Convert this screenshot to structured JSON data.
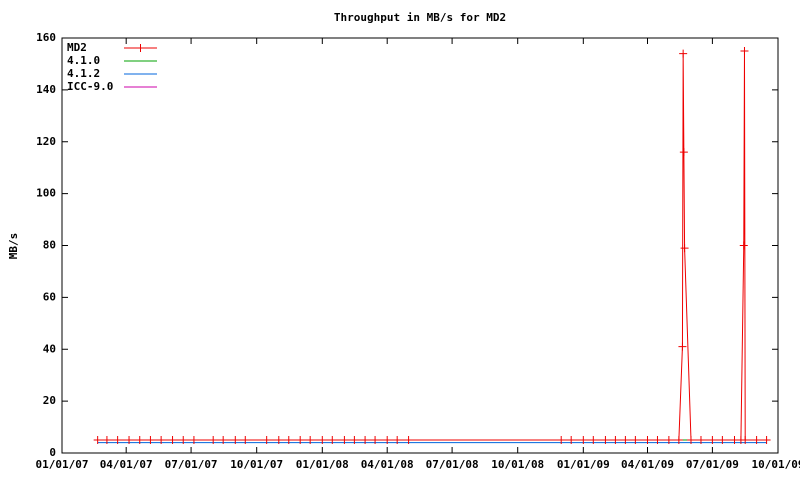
{
  "chart_data": {
    "type": "line",
    "title": "Throughput in MB/s for MD2",
    "y_label": "MB/s",
    "xlim": [
      "2007-01-01",
      "2009-10-01"
    ],
    "xticks": [
      {
        "value": "2007-01-01",
        "label": "01/01/07"
      },
      {
        "value": "2007-04-01",
        "label": "04/01/07"
      },
      {
        "value": "2007-07-01",
        "label": "07/01/07"
      },
      {
        "value": "2007-10-01",
        "label": "10/01/07"
      },
      {
        "value": "2008-01-01",
        "label": "01/01/08"
      },
      {
        "value": "2008-04-01",
        "label": "04/01/08"
      },
      {
        "value": "2008-07-01",
        "label": "07/01/08"
      },
      {
        "value": "2008-10-01",
        "label": "10/01/08"
      },
      {
        "value": "2009-01-01",
        "label": "01/01/09"
      },
      {
        "value": "2009-04-01",
        "label": "04/01/09"
      },
      {
        "value": "2009-07-01",
        "label": "07/01/09"
      },
      {
        "value": "2009-10-01",
        "label": "10/01/09"
      }
    ],
    "ylim": [
      0,
      160
    ],
    "yticks": [
      0,
      20,
      40,
      60,
      80,
      100,
      120,
      140,
      160
    ],
    "legend": "top-left",
    "series": [
      {
        "name": "MD2",
        "color": "#ee0000",
        "marker": "plus",
        "x": [
          "2007-02-20",
          "2007-03-05",
          "2007-03-20",
          "2007-04-05",
          "2007-04-20",
          "2007-05-05",
          "2007-05-20",
          "2007-06-05",
          "2007-06-20",
          "2007-07-05",
          "2007-08-01",
          "2007-08-15",
          "2007-09-01",
          "2007-09-15",
          "2007-10-15",
          "2007-11-01",
          "2007-11-15",
          "2007-12-01",
          "2007-12-15",
          "2008-01-01",
          "2008-01-15",
          "2008-02-01",
          "2008-02-15",
          "2008-03-01",
          "2008-03-15",
          "2008-04-01",
          "2008-04-15",
          "2008-05-01",
          "2008-12-01",
          "2008-12-15",
          "2009-01-01",
          "2009-01-15",
          "2009-02-01",
          "2009-02-15",
          "2009-03-01",
          "2009-03-15",
          "2009-04-01",
          "2009-04-15",
          "2009-05-01",
          "2009-05-15",
          "2009-05-20",
          "2009-05-21",
          "2009-05-22",
          "2009-05-23",
          "2009-06-01",
          "2009-06-15",
          "2009-07-01",
          "2009-07-15",
          "2009-08-01",
          "2009-08-10",
          "2009-08-14",
          "2009-08-15",
          "2009-08-16",
          "2009-09-01",
          "2009-09-15"
        ],
        "values": [
          5,
          5,
          5,
          5,
          5,
          5,
          5,
          5,
          5,
          5,
          5,
          5,
          5,
          5,
          5,
          5,
          5,
          5,
          5,
          5,
          5,
          5,
          5,
          5,
          5,
          5,
          5,
          5,
          5,
          5,
          5,
          5,
          5,
          5,
          5,
          5,
          5,
          5,
          5,
          5,
          41,
          154,
          116,
          79,
          5,
          5,
          5,
          5,
          5,
          5,
          80,
          155,
          5,
          5,
          5
        ]
      },
      {
        "name": "4.1.0",
        "color": "#00a000",
        "x": [
          "2007-02-20",
          "2009-09-15"
        ],
        "values": [
          5,
          5
        ]
      },
      {
        "name": "4.1.2",
        "color": "#0066dd",
        "x": [
          "2007-02-20",
          "2009-09-15"
        ],
        "values": [
          4,
          4
        ]
      },
      {
        "name": "ICC-9.0",
        "color": "#cc00aa",
        "x": [
          "2007-02-20",
          "2009-09-15"
        ],
        "values": [
          5,
          5
        ]
      }
    ]
  }
}
